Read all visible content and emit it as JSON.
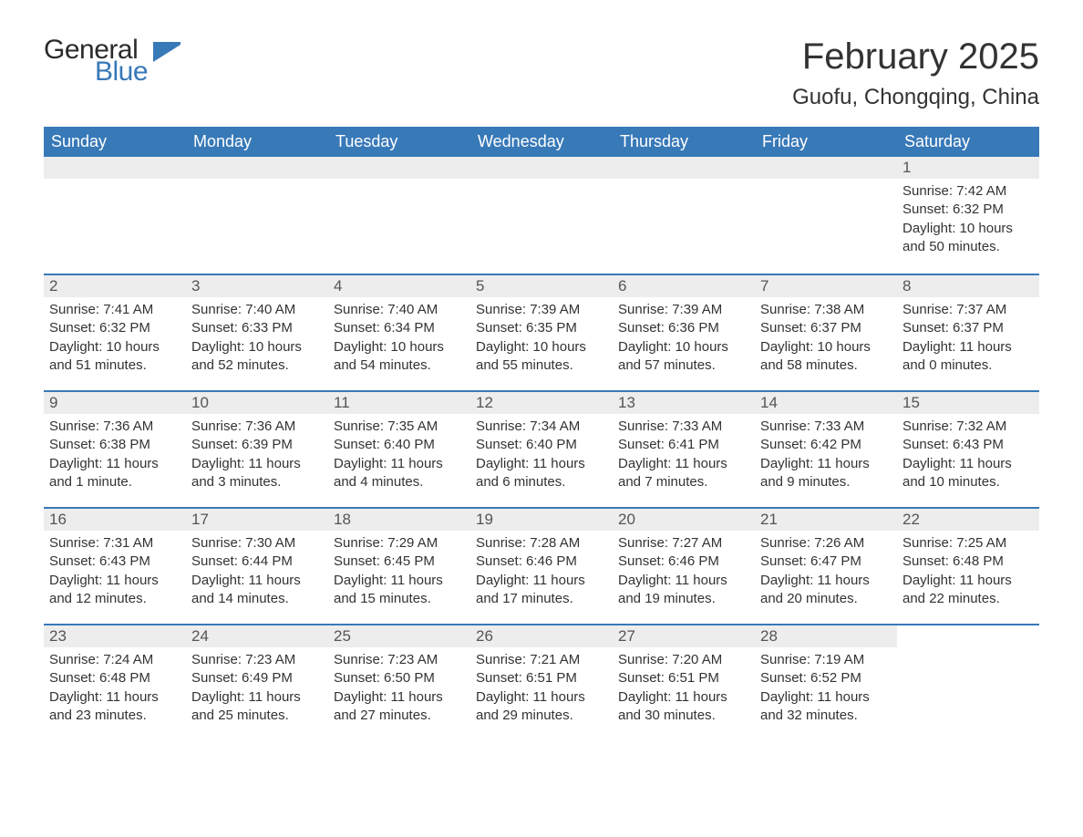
{
  "brand": {
    "word1": "General",
    "word2": "Blue"
  },
  "colors": {
    "header_bg": "#3879b8",
    "header_text": "#ffffff",
    "row_border": "#3879b8",
    "daynum_bg": "#ededed",
    "body_text": "#333333",
    "logo_accent": "#3879b8"
  },
  "title": "February 2025",
  "location": "Guofu, Chongqing, China",
  "day_headers": [
    "Sunday",
    "Monday",
    "Tuesday",
    "Wednesday",
    "Thursday",
    "Friday",
    "Saturday"
  ],
  "weeks": [
    [
      null,
      null,
      null,
      null,
      null,
      null,
      {
        "n": "1",
        "sunrise": "Sunrise: 7:42 AM",
        "sunset": "Sunset: 6:32 PM",
        "daylight": "Daylight: 10 hours and 50 minutes."
      }
    ],
    [
      {
        "n": "2",
        "sunrise": "Sunrise: 7:41 AM",
        "sunset": "Sunset: 6:32 PM",
        "daylight": "Daylight: 10 hours and 51 minutes."
      },
      {
        "n": "3",
        "sunrise": "Sunrise: 7:40 AM",
        "sunset": "Sunset: 6:33 PM",
        "daylight": "Daylight: 10 hours and 52 minutes."
      },
      {
        "n": "4",
        "sunrise": "Sunrise: 7:40 AM",
        "sunset": "Sunset: 6:34 PM",
        "daylight": "Daylight: 10 hours and 54 minutes."
      },
      {
        "n": "5",
        "sunrise": "Sunrise: 7:39 AM",
        "sunset": "Sunset: 6:35 PM",
        "daylight": "Daylight: 10 hours and 55 minutes."
      },
      {
        "n": "6",
        "sunrise": "Sunrise: 7:39 AM",
        "sunset": "Sunset: 6:36 PM",
        "daylight": "Daylight: 10 hours and 57 minutes."
      },
      {
        "n": "7",
        "sunrise": "Sunrise: 7:38 AM",
        "sunset": "Sunset: 6:37 PM",
        "daylight": "Daylight: 10 hours and 58 minutes."
      },
      {
        "n": "8",
        "sunrise": "Sunrise: 7:37 AM",
        "sunset": "Sunset: 6:37 PM",
        "daylight": "Daylight: 11 hours and 0 minutes."
      }
    ],
    [
      {
        "n": "9",
        "sunrise": "Sunrise: 7:36 AM",
        "sunset": "Sunset: 6:38 PM",
        "daylight": "Daylight: 11 hours and 1 minute."
      },
      {
        "n": "10",
        "sunrise": "Sunrise: 7:36 AM",
        "sunset": "Sunset: 6:39 PM",
        "daylight": "Daylight: 11 hours and 3 minutes."
      },
      {
        "n": "11",
        "sunrise": "Sunrise: 7:35 AM",
        "sunset": "Sunset: 6:40 PM",
        "daylight": "Daylight: 11 hours and 4 minutes."
      },
      {
        "n": "12",
        "sunrise": "Sunrise: 7:34 AM",
        "sunset": "Sunset: 6:40 PM",
        "daylight": "Daylight: 11 hours and 6 minutes."
      },
      {
        "n": "13",
        "sunrise": "Sunrise: 7:33 AM",
        "sunset": "Sunset: 6:41 PM",
        "daylight": "Daylight: 11 hours and 7 minutes."
      },
      {
        "n": "14",
        "sunrise": "Sunrise: 7:33 AM",
        "sunset": "Sunset: 6:42 PM",
        "daylight": "Daylight: 11 hours and 9 minutes."
      },
      {
        "n": "15",
        "sunrise": "Sunrise: 7:32 AM",
        "sunset": "Sunset: 6:43 PM",
        "daylight": "Daylight: 11 hours and 10 minutes."
      }
    ],
    [
      {
        "n": "16",
        "sunrise": "Sunrise: 7:31 AM",
        "sunset": "Sunset: 6:43 PM",
        "daylight": "Daylight: 11 hours and 12 minutes."
      },
      {
        "n": "17",
        "sunrise": "Sunrise: 7:30 AM",
        "sunset": "Sunset: 6:44 PM",
        "daylight": "Daylight: 11 hours and 14 minutes."
      },
      {
        "n": "18",
        "sunrise": "Sunrise: 7:29 AM",
        "sunset": "Sunset: 6:45 PM",
        "daylight": "Daylight: 11 hours and 15 minutes."
      },
      {
        "n": "19",
        "sunrise": "Sunrise: 7:28 AM",
        "sunset": "Sunset: 6:46 PM",
        "daylight": "Daylight: 11 hours and 17 minutes."
      },
      {
        "n": "20",
        "sunrise": "Sunrise: 7:27 AM",
        "sunset": "Sunset: 6:46 PM",
        "daylight": "Daylight: 11 hours and 19 minutes."
      },
      {
        "n": "21",
        "sunrise": "Sunrise: 7:26 AM",
        "sunset": "Sunset: 6:47 PM",
        "daylight": "Daylight: 11 hours and 20 minutes."
      },
      {
        "n": "22",
        "sunrise": "Sunrise: 7:25 AM",
        "sunset": "Sunset: 6:48 PM",
        "daylight": "Daylight: 11 hours and 22 minutes."
      }
    ],
    [
      {
        "n": "23",
        "sunrise": "Sunrise: 7:24 AM",
        "sunset": "Sunset: 6:48 PM",
        "daylight": "Daylight: 11 hours and 23 minutes."
      },
      {
        "n": "24",
        "sunrise": "Sunrise: 7:23 AM",
        "sunset": "Sunset: 6:49 PM",
        "daylight": "Daylight: 11 hours and 25 minutes."
      },
      {
        "n": "25",
        "sunrise": "Sunrise: 7:23 AM",
        "sunset": "Sunset: 6:50 PM",
        "daylight": "Daylight: 11 hours and 27 minutes."
      },
      {
        "n": "26",
        "sunrise": "Sunrise: 7:21 AM",
        "sunset": "Sunset: 6:51 PM",
        "daylight": "Daylight: 11 hours and 29 minutes."
      },
      {
        "n": "27",
        "sunrise": "Sunrise: 7:20 AM",
        "sunset": "Sunset: 6:51 PM",
        "daylight": "Daylight: 11 hours and 30 minutes."
      },
      {
        "n": "28",
        "sunrise": "Sunrise: 7:19 AM",
        "sunset": "Sunset: 6:52 PM",
        "daylight": "Daylight: 11 hours and 32 minutes."
      },
      null
    ]
  ]
}
